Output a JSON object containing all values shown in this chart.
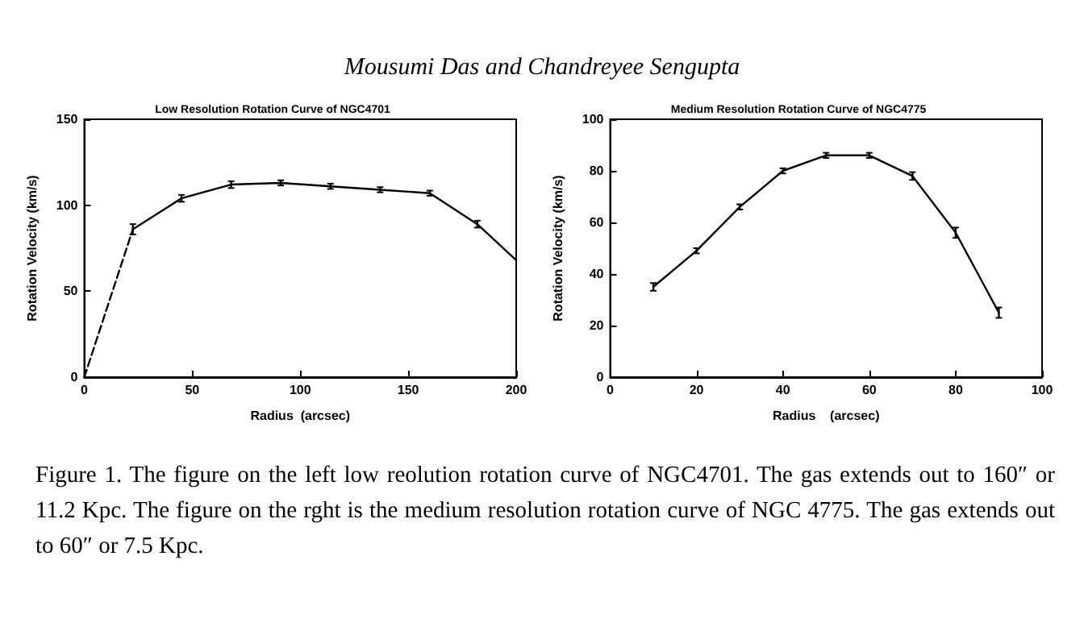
{
  "chart_data": [
    {
      "type": "line",
      "title": "Low Resolution Rotation Curve of NGC4701",
      "xlabel": "Radius  (arcsec)",
      "ylabel": "Rotation Velocity (km/s)",
      "annotations": [
        "Mousumi Das and Chandreyee Sengupta"
      ],
      "xlim": [
        0,
        200
      ],
      "xticks": [
        0,
        50,
        100,
        150,
        200
      ],
      "ylim": [
        0,
        150
      ],
      "yticks": [
        0,
        50,
        100,
        150
      ],
      "grid": false,
      "marker": "none",
      "series": [
        {
          "color": "#000000",
          "line_style": "dashed",
          "x": [
            0,
            22.5
          ],
          "values": [
            0,
            86
          ]
        },
        {
          "color": "#000000",
          "line_style": "solid",
          "x": [
            22.5,
            45,
            68,
            91,
            114,
            137,
            160,
            182,
            200
          ],
          "values": [
            86,
            104,
            112,
            113,
            111,
            109,
            107,
            89,
            68
          ],
          "errors": [
            3,
            2,
            2,
            1.5,
            1.5,
            1.5,
            1.5,
            2,
            null
          ]
        }
      ]
    },
    {
      "type": "line",
      "title": "Medium Resolution Rotation Curve of NGC4775",
      "xlabel": "Radius    (arcsec)",
      "ylabel": "Rotation Velocity (km/s)",
      "annotations": [
        "Figure 1.  The figure on the left low reolution rotation curve of NGC4701.  The gas extends out to 160″ or 11.2 Kpc.  The figure on the rght is the medium resolution rotation curve of NGC 4775. The gas extends out to 60″ or 7.5 Kpc."
      ],
      "xlim": [
        0,
        100
      ],
      "xticks": [
        0,
        20,
        40,
        60,
        80,
        100
      ],
      "ylim": [
        0,
        100
      ],
      "yticks": [
        0,
        20,
        40,
        60,
        80,
        100
      ],
      "grid": false,
      "marker": "none",
      "series": [
        {
          "color": "#000000",
          "line_style": "solid",
          "x": [
            10,
            20,
            30,
            40,
            50,
            60,
            70,
            80,
            90
          ],
          "values": [
            35,
            49,
            66,
            80,
            86,
            86,
            78,
            56,
            25
          ],
          "errors": [
            1.5,
            1,
            1,
            1,
            1,
            1,
            1.5,
            2,
            2
          ]
        }
      ]
    }
  ]
}
